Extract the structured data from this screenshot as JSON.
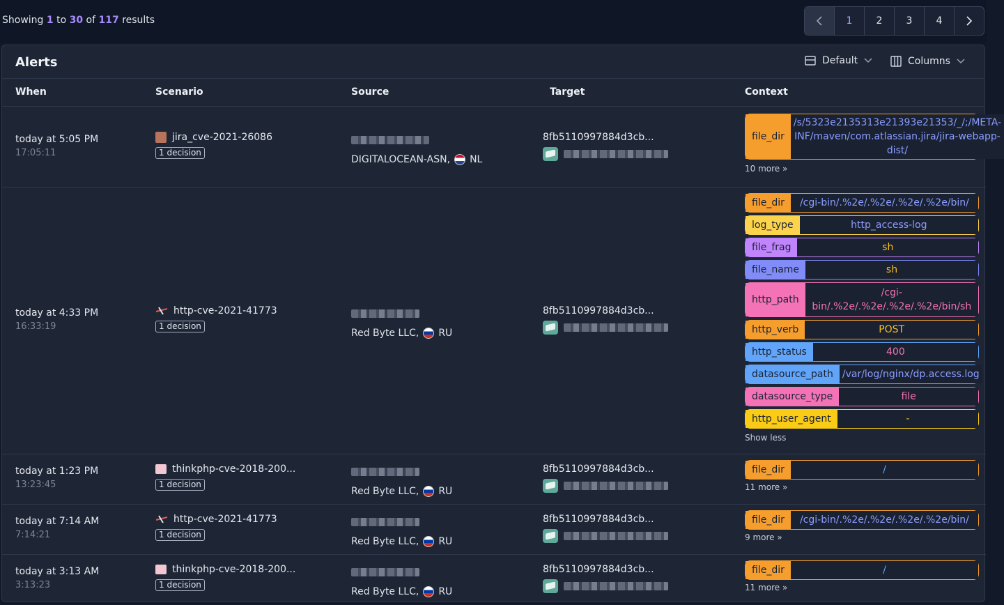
{
  "results": {
    "prefix": "Showing",
    "from": "1",
    "to_word": "to",
    "to": "30",
    "of_word": "of",
    "total": "117",
    "suffix": "results"
  },
  "pagination": {
    "pages": [
      "1",
      "2",
      "3",
      "4"
    ]
  },
  "panel": {
    "title": "Alerts",
    "view_label": "Default",
    "columns_label": "Columns"
  },
  "columns": {
    "when": "When",
    "scenario": "Scenario",
    "source": "Source",
    "target": "Target",
    "context": "Context"
  },
  "rows": [
    {
      "when": "today at 5:05 PM",
      "time": "17:05:11",
      "scenario": "jira_cve-2021-26086",
      "decision": "1 decision",
      "source_as": "DIGITALOCEAN-ASN,",
      "country": "NL",
      "target": "8fb5110997884d3cb...",
      "context": [
        {
          "key": "file_dir",
          "value": "/s/5323e2135313e21393e21353/_/;/META-INF/maven/com.atlassian.jira/jira-webapp-dist/"
        }
      ],
      "more": "10 more »"
    },
    {
      "when": "today at 4:33 PM",
      "time": "16:33:19",
      "scenario": "http-cve-2021-41773",
      "decision": "1 decision",
      "source_as": "Red Byte LLC,",
      "country": "RU",
      "target": "8fb5110997884d3cb...",
      "context": [
        {
          "key": "file_dir",
          "value": "/cgi-bin/.%2e/.%2e/.%2e/.%2e/bin/"
        },
        {
          "key": "log_type",
          "value": "http_access-log"
        },
        {
          "key": "file_frag",
          "value": "sh"
        },
        {
          "key": "file_name",
          "value": "sh"
        },
        {
          "key": "http_path",
          "value": "/cgi-bin/.%2e/.%2e/.%2e/.%2e/bin/sh"
        },
        {
          "key": "http_verb",
          "value": "POST"
        },
        {
          "key": "http_status",
          "value": "400"
        },
        {
          "key": "datasource_path",
          "value": "/var/log/nginx/dp.access.log"
        },
        {
          "key": "datasource_type",
          "value": "file"
        },
        {
          "key": "http_user_agent",
          "value": "-"
        }
      ],
      "more": "Show less"
    },
    {
      "when": "today at 1:23 PM",
      "time": "13:23:45",
      "scenario": "thinkphp-cve-2018-200...",
      "decision": "1 decision",
      "source_as": "Red Byte LLC,",
      "country": "RU",
      "target": "8fb5110997884d3cb...",
      "context": [
        {
          "key": "file_dir",
          "value": "/"
        }
      ],
      "more": "11 more »"
    },
    {
      "when": "today at 7:14 AM",
      "time": "7:14:21",
      "scenario": "http-cve-2021-41773",
      "decision": "1 decision",
      "source_as": "Red Byte LLC,",
      "country": "RU",
      "target": "8fb5110997884d3cb...",
      "context": [
        {
          "key": "file_dir",
          "value": "/cgi-bin/.%2e/.%2e/.%2e/.%2e/bin/"
        }
      ],
      "more": "9 more »"
    },
    {
      "when": "today at 3:13 AM",
      "time": "3:13:23",
      "scenario": "thinkphp-cve-2018-200...",
      "decision": "1 decision",
      "source_as": "Red Byte LLC,",
      "country": "RU",
      "target": "8fb5110997884d3cb...",
      "context": [
        {
          "key": "file_dir",
          "value": "/"
        }
      ],
      "more": "11 more »"
    }
  ]
}
